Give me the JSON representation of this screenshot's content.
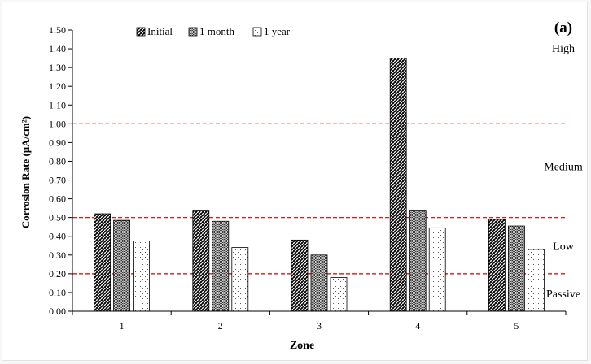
{
  "chart_data": {
    "type": "bar",
    "panel_label": "(a)",
    "xlabel": "Zone",
    "ylabel": "Corrosion Rate (µA/cm²)",
    "categories": [
      "1",
      "2",
      "3",
      "4",
      "5"
    ],
    "series": [
      {
        "name": "Initial",
        "pattern": "hatch-dense",
        "values": [
          0.52,
          0.535,
          0.38,
          1.35,
          0.49
        ]
      },
      {
        "name": "1 month",
        "pattern": "wave",
        "values": [
          0.485,
          0.48,
          0.3,
          0.535,
          0.455
        ]
      },
      {
        "name": "1 year",
        "pattern": "dots",
        "values": [
          0.375,
          0.34,
          0.18,
          0.445,
          0.33
        ]
      }
    ],
    "ylim": [
      0,
      1.5
    ],
    "ytick_step": 0.1,
    "yticks": [
      "0.00",
      "0.10",
      "0.20",
      "0.30",
      "0.40",
      "0.50",
      "0.60",
      "0.70",
      "0.80",
      "0.90",
      "1.00",
      "1.10",
      "1.20",
      "1.30",
      "1.40",
      "1.50"
    ],
    "thresholds": [
      {
        "value": 1.0,
        "color": "#cc0000"
      },
      {
        "value": 0.5,
        "color": "#cc0000"
      },
      {
        "value": 0.2,
        "color": "#cc0000"
      }
    ],
    "zone_labels": [
      {
        "text": "High",
        "y": 1.4
      },
      {
        "text": "Medium",
        "y": 0.77
      },
      {
        "text": "Low",
        "y": 0.345
      },
      {
        "text": "Passive",
        "y": 0.09
      }
    ],
    "legend_position": "top-left",
    "grid": false
  }
}
